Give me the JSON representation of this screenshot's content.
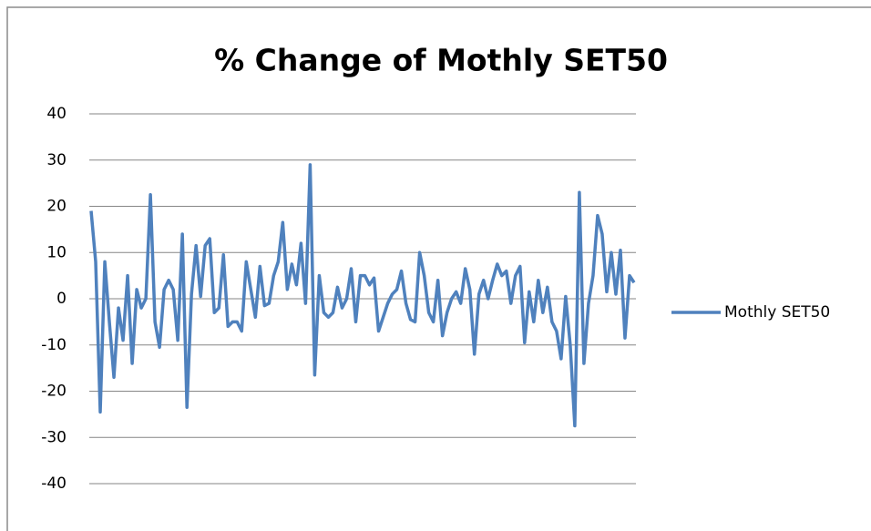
{
  "chart_data": {
    "type": "line",
    "title": "% Change of Mothly SET50",
    "series": [
      {
        "name": "Mothly SET50",
        "color": "#4f81bd",
        "values": [
          19,
          8,
          -24.5,
          8,
          -5,
          -17,
          -2,
          -9,
          5,
          -14,
          2,
          -2,
          0,
          22.5,
          -5,
          -10.5,
          2,
          4,
          2,
          -9,
          14,
          -23.5,
          1,
          11.5,
          0.5,
          11.5,
          13,
          -3,
          -2,
          9.5,
          -6,
          -5,
          -5,
          -7,
          8,
          2,
          -4,
          7,
          -1.5,
          -1,
          5,
          8,
          16.5,
          2,
          7.5,
          3,
          12,
          -1,
          29,
          -16.5,
          5,
          -3,
          -4,
          -3,
          2.5,
          -2,
          0,
          6.5,
          -5,
          5,
          5,
          3,
          4.5,
          -7,
          -4,
          -1,
          1,
          2,
          6,
          -1,
          -4.5,
          -5,
          10,
          5,
          -3,
          -5,
          4,
          -8,
          -3,
          0,
          1.5,
          -1,
          6.5,
          2,
          -12,
          1,
          4,
          0,
          4,
          7.5,
          5,
          6,
          -1,
          5,
          7,
          -9.5,
          1.5,
          -5,
          4,
          -3,
          2.5,
          -5,
          -7,
          -13,
          0.5,
          -10,
          -27.5,
          23,
          -14,
          -1,
          5,
          18,
          14,
          1.5,
          10,
          1,
          10.5,
          -8.5,
          5,
          3.5
        ]
      }
    ],
    "ylim": [
      -40,
      40
    ],
    "yticks": [
      -40,
      -30,
      -20,
      -10,
      0,
      10,
      20,
      30,
      40
    ],
    "grid": true,
    "legend": "right"
  }
}
